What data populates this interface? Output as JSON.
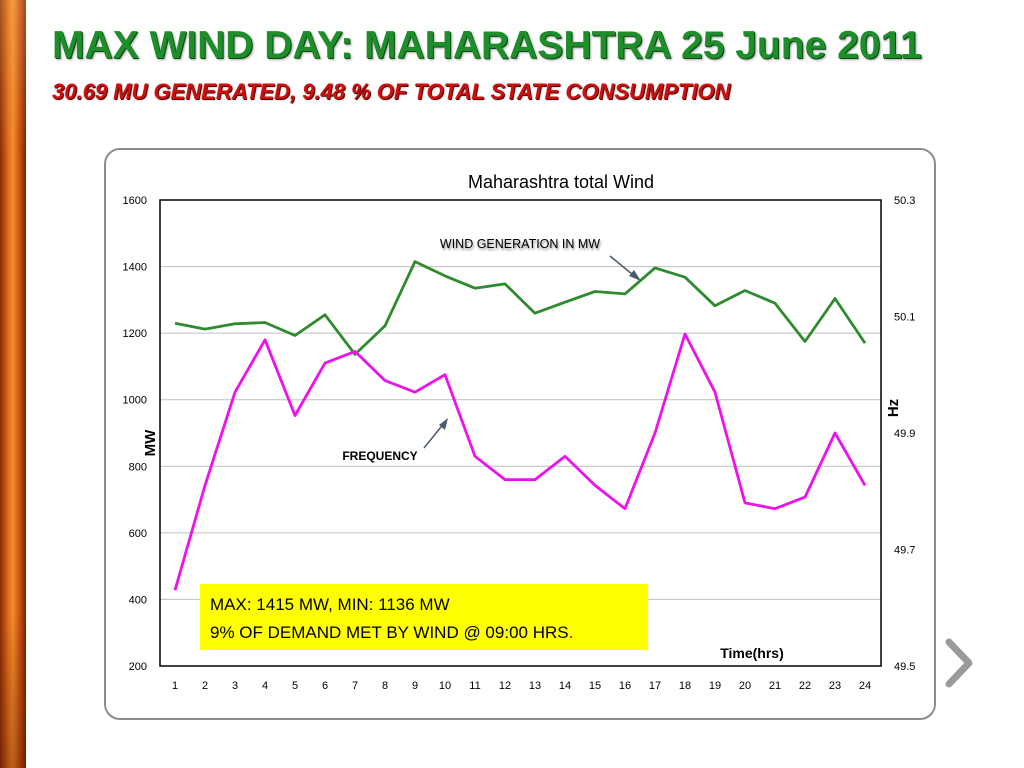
{
  "slide": {
    "title": "MAX WIND DAY: MAHARASHTRA 25 June 2011",
    "subtitle": "30.69 MU GENERATED, 9.48 % OF TOTAL STATE CONSUMPTION"
  },
  "colors": {
    "title": "#1e8e2a",
    "subtitle": "#cc1010",
    "wind_series": "#2e8b2e",
    "frequency_series": "#ee11ee",
    "callout_bg": "#ffff00",
    "grid": "#bfbfbf"
  },
  "chart_data": {
    "type": "line",
    "title": "Maharashtra total Wind",
    "xlabel": "Time(hrs)",
    "ylabel": "MW",
    "y2label": "Hz",
    "x": [
      1,
      2,
      3,
      4,
      5,
      6,
      7,
      8,
      9,
      10,
      11,
      12,
      13,
      14,
      15,
      16,
      17,
      18,
      19,
      20,
      21,
      22,
      23,
      24
    ],
    "ylim": [
      200,
      1600
    ],
    "yticks": [
      200,
      400,
      600,
      800,
      1000,
      1200,
      1400,
      1600
    ],
    "y2lim": [
      49.5,
      50.3
    ],
    "y2ticks": [
      49.5,
      49.7,
      49.9,
      50.1,
      50.3
    ],
    "y2tick_labels": [
      "49.5",
      "49.7",
      "49.9",
      "50.1",
      "50.3"
    ],
    "grid": true,
    "series": [
      {
        "name": "WIND GENERATION IN MW",
        "axis": "left",
        "values": [
          1230,
          1212,
          1228,
          1232,
          1193,
          1255,
          1136,
          1222,
          1415,
          1372,
          1335,
          1348,
          1260,
          1293,
          1325,
          1318,
          1396,
          1368,
          1282,
          1328,
          1290,
          1175,
          1304,
          1170
        ]
      },
      {
        "name": "FREQUENCY",
        "axis": "right",
        "values": [
          49.63,
          49.81,
          49.97,
          50.06,
          49.93,
          50.02,
          50.04,
          49.99,
          49.97,
          50.0,
          49.86,
          49.82,
          49.82,
          49.86,
          49.81,
          49.77,
          49.9,
          50.07,
          49.97,
          49.78,
          49.77,
          49.79,
          49.9,
          49.81
        ]
      }
    ],
    "annotations": [
      "WIND GENERATION IN MW",
      "FREQUENCY"
    ],
    "callout": {
      "line1": "MAX: 1415 MW, MIN: 1136 MW",
      "line2": "9% OF DEMAND MET BY WIND @ 09:00 HRS",
      "line2_suffix": "."
    }
  }
}
